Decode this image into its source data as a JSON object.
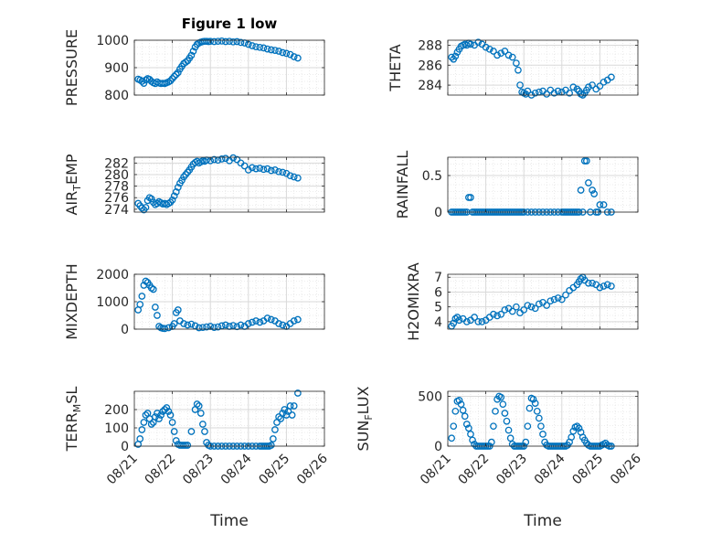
{
  "figure": {
    "title": "Figure 1 low",
    "marker_color": "#0072bd",
    "grid": true,
    "xlabel": "Time"
  },
  "chart_data": [
    {
      "type": "scatter",
      "ylabel": "PRESSURE",
      "xlim": [
        "08/21",
        "08/26"
      ],
      "xticks": [
        "08/21",
        "08/22",
        "08/23",
        "08/24",
        "08/25",
        "08/26"
      ],
      "ylim": [
        800,
        1000
      ],
      "yticks": [
        800,
        900,
        1000
      ],
      "x_days": [
        0.1,
        0.15,
        0.2,
        0.25,
        0.3,
        0.35,
        0.4,
        0.45,
        0.5,
        0.55,
        0.6,
        0.65,
        0.7,
        0.75,
        0.8,
        0.85,
        0.9,
        0.95,
        1.0,
        1.05,
        1.1,
        1.15,
        1.2,
        1.25,
        1.3,
        1.35,
        1.4,
        1.45,
        1.5,
        1.55,
        1.6,
        1.65,
        1.7,
        1.75,
        1.8,
        1.85,
        1.9,
        1.95,
        2.0,
        2.1,
        2.2,
        2.3,
        2.4,
        2.5,
        2.6,
        2.7,
        2.8,
        2.9,
        3.0,
        3.1,
        3.2,
        3.3,
        3.4,
        3.5,
        3.6,
        3.7,
        3.8,
        3.9,
        4.0,
        4.1,
        4.2,
        4.3
      ],
      "y": [
        858,
        855,
        850,
        843,
        855,
        860,
        857,
        850,
        845,
        842,
        848,
        844,
        842,
        843,
        842,
        845,
        848,
        852,
        860,
        868,
        875,
        882,
        895,
        905,
        915,
        920,
        925,
        935,
        945,
        960,
        975,
        985,
        990,
        993,
        995,
        996,
        996,
        995,
        996,
        995,
        996,
        997,
        995,
        996,
        994,
        995,
        992,
        990,
        985,
        980,
        976,
        974,
        972,
        968,
        965,
        963,
        960,
        955,
        952,
        948,
        940,
        935
      ]
    },
    {
      "type": "scatter",
      "ylabel": "THETA",
      "xlim": [
        "08/21",
        "08/26"
      ],
      "xticks": [
        "08/21",
        "08/22",
        "08/23",
        "08/24",
        "08/25",
        "08/26"
      ],
      "ylim": [
        283,
        288.5
      ],
      "yticks": [
        284,
        286,
        288
      ],
      "x_days": [
        0.1,
        0.15,
        0.2,
        0.25,
        0.3,
        0.35,
        0.4,
        0.45,
        0.5,
        0.55,
        0.6,
        0.7,
        0.8,
        0.9,
        1.0,
        1.1,
        1.2,
        1.3,
        1.4,
        1.5,
        1.6,
        1.7,
        1.8,
        1.85,
        1.9,
        1.95,
        2.0,
        2.05,
        2.1,
        2.2,
        2.3,
        2.4,
        2.5,
        2.6,
        2.7,
        2.8,
        2.9,
        3.0,
        3.1,
        3.2,
        3.3,
        3.4,
        3.45,
        3.5,
        3.55,
        3.6,
        3.65,
        3.7,
        3.8,
        3.9,
        4.0,
        4.1,
        4.2,
        4.3
      ],
      "y": [
        286.8,
        286.6,
        286.9,
        287.3,
        287.6,
        287.9,
        288.0,
        288.1,
        288.0,
        288.2,
        288.1,
        288.0,
        288.3,
        288.1,
        287.8,
        287.6,
        287.4,
        287.0,
        287.2,
        287.4,
        287.0,
        286.8,
        286.2,
        285.5,
        284.0,
        283.3,
        283.2,
        283.1,
        283.4,
        283.0,
        283.2,
        283.3,
        283.4,
        283.1,
        283.5,
        283.2,
        283.4,
        283.3,
        283.5,
        283.2,
        283.8,
        283.6,
        283.4,
        283.1,
        283.0,
        283.2,
        283.5,
        283.8,
        284.0,
        283.6,
        283.9,
        284.3,
        284.5,
        284.8
      ]
    },
    {
      "type": "scatter",
      "ylabel": "AIR_TEMP",
      "xlim": [
        "08/21",
        "08/26"
      ],
      "xticks": [
        "08/21",
        "08/22",
        "08/23",
        "08/24",
        "08/25",
        "08/26"
      ],
      "ylim": [
        273.5,
        283
      ],
      "yticks": [
        274,
        276,
        278,
        280,
        282
      ],
      "x_days": [
        0.1,
        0.15,
        0.2,
        0.25,
        0.3,
        0.35,
        0.4,
        0.45,
        0.5,
        0.55,
        0.6,
        0.65,
        0.7,
        0.75,
        0.8,
        0.85,
        0.9,
        0.95,
        1.0,
        1.05,
        1.1,
        1.15,
        1.2,
        1.25,
        1.3,
        1.35,
        1.4,
        1.45,
        1.5,
        1.55,
        1.6,
        1.65,
        1.7,
        1.75,
        1.8,
        1.85,
        1.9,
        2.0,
        2.1,
        2.2,
        2.3,
        2.4,
        2.5,
        2.6,
        2.7,
        2.8,
        2.9,
        3.0,
        3.1,
        3.2,
        3.3,
        3.4,
        3.5,
        3.6,
        3.7,
        3.8,
        3.9,
        4.0,
        4.1,
        4.2,
        4.3
      ],
      "y": [
        275.0,
        274.6,
        274.2,
        273.9,
        274.3,
        275.5,
        276.0,
        275.8,
        275.2,
        274.8,
        275.0,
        275.3,
        275.1,
        274.9,
        275.0,
        274.8,
        275.0,
        275.2,
        275.6,
        276.3,
        277.0,
        277.8,
        278.5,
        279.0,
        279.6,
        280.0,
        280.4,
        280.8,
        281.3,
        281.8,
        282.1,
        282.3,
        282.0,
        282.2,
        282.4,
        282.3,
        282.5,
        282.4,
        282.6,
        282.5,
        282.7,
        282.8,
        282.4,
        282.9,
        282.6,
        282.0,
        281.5,
        280.8,
        281.2,
        281.0,
        281.1,
        280.9,
        281.0,
        280.7,
        280.8,
        280.5,
        280.4,
        280.2,
        279.8,
        279.6,
        279.4
      ]
    },
    {
      "type": "scatter",
      "ylabel": "RAINFALL",
      "xlim": [
        "08/21",
        "08/26"
      ],
      "xticks": [
        "08/21",
        "08/22",
        "08/23",
        "08/24",
        "08/25",
        "08/26"
      ],
      "ylim": [
        0,
        0.75
      ],
      "yticks": [
        0,
        0.5
      ],
      "x_days": [
        0.1,
        0.15,
        0.2,
        0.25,
        0.3,
        0.35,
        0.4,
        0.45,
        0.5,
        0.55,
        0.6,
        0.65,
        0.7,
        0.75,
        0.8,
        0.85,
        0.9,
        0.95,
        1.0,
        1.05,
        1.1,
        1.15,
        1.2,
        1.25,
        1.3,
        1.35,
        1.4,
        1.45,
        1.5,
        1.55,
        1.6,
        1.65,
        1.7,
        1.75,
        1.8,
        1.85,
        1.9,
        1.95,
        2.0,
        2.1,
        2.2,
        2.3,
        2.4,
        2.5,
        2.6,
        2.7,
        2.8,
        2.9,
        3.0,
        3.05,
        3.1,
        3.15,
        3.2,
        3.25,
        3.3,
        3.35,
        3.4,
        3.45,
        3.5,
        3.55,
        3.6,
        3.65,
        3.7,
        3.75,
        3.8,
        3.85,
        3.9,
        3.95,
        4.0,
        4.1,
        4.2,
        4.3
      ],
      "y": [
        0,
        0,
        0,
        0,
        0,
        0,
        0,
        0,
        0,
        0.2,
        0.2,
        0,
        0,
        0,
        0,
        0,
        0,
        0,
        0,
        0,
        0,
        0,
        0,
        0,
        0,
        0,
        0,
        0,
        0,
        0,
        0,
        0,
        0,
        0,
        0,
        0,
        0,
        0,
        0,
        0,
        0,
        0,
        0,
        0,
        0,
        0,
        0,
        0,
        0,
        0,
        0,
        0,
        0,
        0,
        0,
        0,
        0,
        0,
        0.3,
        0,
        0.7,
        0.7,
        0.4,
        0,
        0.3,
        0.25,
        0,
        0,
        0.1,
        0.1,
        0,
        0
      ]
    },
    {
      "type": "scatter",
      "ylabel": "MIXDEPTH",
      "xlim": [
        "08/21",
        "08/26"
      ],
      "xticks": [
        "08/21",
        "08/22",
        "08/23",
        "08/24",
        "08/25",
        "08/26"
      ],
      "ylim": [
        0,
        2000
      ],
      "yticks": [
        0,
        1000,
        2000
      ],
      "x_days": [
        0.1,
        0.15,
        0.2,
        0.25,
        0.3,
        0.35,
        0.4,
        0.45,
        0.5,
        0.55,
        0.6,
        0.65,
        0.7,
        0.75,
        0.8,
        0.9,
        1.0,
        1.05,
        1.1,
        1.15,
        1.2,
        1.3,
        1.4,
        1.5,
        1.6,
        1.7,
        1.8,
        1.9,
        2.0,
        2.1,
        2.2,
        2.3,
        2.4,
        2.5,
        2.6,
        2.7,
        2.8,
        2.9,
        3.0,
        3.1,
        3.2,
        3.3,
        3.4,
        3.5,
        3.6,
        3.7,
        3.8,
        3.9,
        4.0,
        4.1,
        4.2,
        4.3
      ],
      "y": [
        700,
        900,
        1200,
        1600,
        1750,
        1700,
        1600,
        1500,
        1450,
        800,
        500,
        100,
        50,
        30,
        20,
        50,
        100,
        200,
        600,
        700,
        300,
        200,
        150,
        180,
        120,
        50,
        60,
        80,
        100,
        60,
        80,
        120,
        150,
        100,
        130,
        90,
        150,
        100,
        200,
        250,
        300,
        250,
        300,
        400,
        350,
        300,
        200,
        150,
        100,
        200,
        300,
        350
      ]
    },
    {
      "type": "scatter",
      "ylabel": "H2OMIXRA",
      "xlim": [
        "08/21",
        "08/26"
      ],
      "xticks": [
        "08/21",
        "08/22",
        "08/23",
        "08/24",
        "08/25",
        "08/26"
      ],
      "ylim": [
        3.5,
        7.2
      ],
      "yticks": [
        4,
        5,
        6,
        7
      ],
      "x_days": [
        0.1,
        0.15,
        0.2,
        0.25,
        0.3,
        0.4,
        0.5,
        0.6,
        0.7,
        0.8,
        0.9,
        1.0,
        1.1,
        1.2,
        1.3,
        1.4,
        1.5,
        1.6,
        1.7,
        1.8,
        1.9,
        2.0,
        2.1,
        2.2,
        2.3,
        2.4,
        2.5,
        2.6,
        2.7,
        2.8,
        2.9,
        3.0,
        3.1,
        3.2,
        3.3,
        3.4,
        3.45,
        3.5,
        3.55,
        3.6,
        3.7,
        3.8,
        3.9,
        4.0,
        4.1,
        4.2,
        4.3
      ],
      "y": [
        3.7,
        3.9,
        4.2,
        4.3,
        4.1,
        4.2,
        4.0,
        4.1,
        4.3,
        4.0,
        4.0,
        4.1,
        4.3,
        4.5,
        4.4,
        4.5,
        4.8,
        4.9,
        4.7,
        5.0,
        4.6,
        4.8,
        5.1,
        5.0,
        4.9,
        5.2,
        5.3,
        5.1,
        5.4,
        5.5,
        5.6,
        5.5,
        5.8,
        6.1,
        6.3,
        6.5,
        6.7,
        6.9,
        7.0,
        6.8,
        6.6,
        6.6,
        6.5,
        6.3,
        6.4,
        6.5,
        6.4
      ]
    },
    {
      "type": "scatter",
      "ylabel": "TERR_MSL",
      "xlim": [
        "08/21",
        "08/26"
      ],
      "xticks": [
        "08/21",
        "08/22",
        "08/23",
        "08/24",
        "08/25",
        "08/26"
      ],
      "ylim": [
        0,
        300
      ],
      "yticks": [
        0,
        100,
        200
      ],
      "x_days": [
        0.1,
        0.15,
        0.2,
        0.25,
        0.3,
        0.35,
        0.4,
        0.45,
        0.5,
        0.55,
        0.6,
        0.65,
        0.7,
        0.75,
        0.8,
        0.85,
        0.9,
        0.95,
        1.0,
        1.05,
        1.1,
        1.15,
        1.2,
        1.25,
        1.3,
        1.35,
        1.4,
        1.5,
        1.6,
        1.65,
        1.7,
        1.75,
        1.8,
        1.85,
        1.9,
        1.95,
        2.0,
        2.1,
        2.2,
        2.3,
        2.4,
        2.5,
        2.6,
        2.7,
        2.8,
        2.9,
        3.0,
        3.1,
        3.2,
        3.3,
        3.35,
        3.4,
        3.45,
        3.5,
        3.55,
        3.6,
        3.65,
        3.7,
        3.75,
        3.8,
        3.85,
        3.9,
        3.95,
        4.0,
        4.05,
        4.1,
        4.15,
        4.2,
        4.3
      ],
      "y": [
        10,
        40,
        90,
        130,
        170,
        180,
        150,
        120,
        130,
        160,
        180,
        150,
        170,
        190,
        200,
        210,
        190,
        170,
        130,
        80,
        30,
        10,
        5,
        5,
        5,
        5,
        5,
        80,
        200,
        230,
        220,
        180,
        120,
        80,
        20,
        5,
        0,
        0,
        0,
        0,
        0,
        0,
        0,
        0,
        0,
        0,
        0,
        0,
        0,
        0,
        0,
        0,
        0,
        0,
        0,
        5,
        40,
        90,
        130,
        160,
        150,
        180,
        200,
        170,
        190,
        220,
        170,
        220,
        290
      ]
    },
    {
      "type": "scatter",
      "ylabel": "SUN_FLUX",
      "xlim": [
        "08/21",
        "08/26"
      ],
      "xticks": [
        "08/21",
        "08/22",
        "08/23",
        "08/24",
        "08/25",
        "08/26"
      ],
      "ylim": [
        0,
        550
      ],
      "yticks": [
        0,
        500
      ],
      "x_days": [
        0.1,
        0.15,
        0.2,
        0.25,
        0.3,
        0.35,
        0.4,
        0.45,
        0.5,
        0.55,
        0.6,
        0.65,
        0.7,
        0.75,
        0.8,
        0.85,
        0.9,
        0.95,
        1.0,
        1.05,
        1.1,
        1.15,
        1.2,
        1.25,
        1.3,
        1.35,
        1.4,
        1.45,
        1.5,
        1.55,
        1.6,
        1.65,
        1.7,
        1.75,
        1.8,
        1.85,
        1.9,
        1.95,
        2.0,
        2.05,
        2.1,
        2.15,
        2.2,
        2.25,
        2.3,
        2.35,
        2.4,
        2.45,
        2.5,
        2.55,
        2.6,
        2.65,
        2.7,
        2.75,
        2.8,
        2.85,
        2.9,
        2.95,
        3.0,
        3.05,
        3.1,
        3.15,
        3.2,
        3.25,
        3.3,
        3.35,
        3.4,
        3.45,
        3.5,
        3.55,
        3.6,
        3.65,
        3.7,
        3.75,
        3.8,
        3.85,
        3.9,
        3.95,
        4.0,
        4.05,
        4.1,
        4.15,
        4.2,
        4.25,
        4.3
      ],
      "y": [
        80,
        200,
        350,
        450,
        460,
        420,
        360,
        300,
        220,
        180,
        120,
        60,
        20,
        0,
        0,
        0,
        0,
        0,
        0,
        0,
        0,
        40,
        200,
        350,
        470,
        500,
        490,
        420,
        330,
        250,
        160,
        80,
        20,
        0,
        0,
        0,
        0,
        0,
        0,
        40,
        200,
        380,
        480,
        470,
        430,
        350,
        280,
        200,
        120,
        40,
        10,
        0,
        0,
        0,
        0,
        0,
        0,
        0,
        0,
        0,
        0,
        10,
        40,
        90,
        150,
        190,
        200,
        180,
        140,
        90,
        60,
        30,
        10,
        0,
        0,
        0,
        0,
        0,
        0,
        10,
        20,
        30,
        10,
        0,
        0
      ]
    }
  ]
}
